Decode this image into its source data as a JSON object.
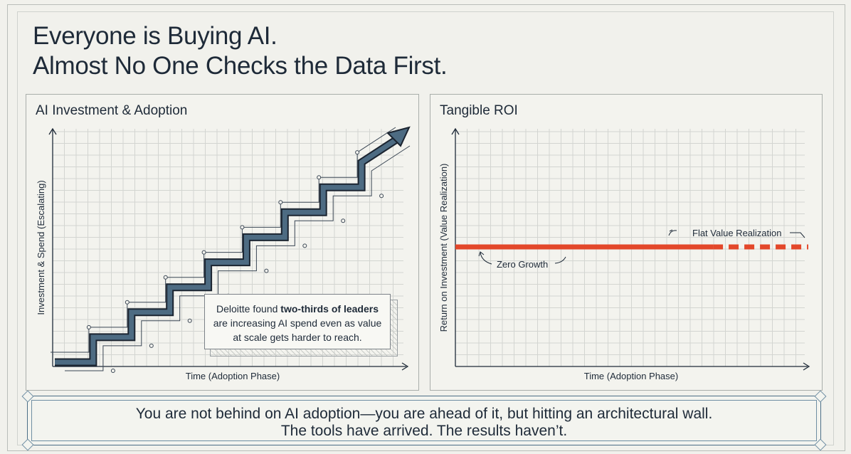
{
  "headline": {
    "line1": "Everyone is Buying AI.",
    "line2": "Almost No One Checks the Data First."
  },
  "left_panel": {
    "title": "AI Investment & Adoption",
    "callout": {
      "prefix": "Deloitte found ",
      "bold": "two-thirds of leaders",
      "line2": "are increasing AI spend even as value",
      "line3": "at scale gets harder to reach."
    }
  },
  "right_panel": {
    "title": "Tangible ROI",
    "annotation_flat": "Flat Value Realization",
    "annotation_zero": "Zero Growth"
  },
  "banner": {
    "line1": "You are not behind on AI adoption—you are ahead of it, but hitting an architectural wall.",
    "line2": "The tools have arrived. The results haven’t."
  },
  "chart_data": [
    {
      "type": "line",
      "title": "AI Investment & Adoption",
      "xlabel": "Time (Adoption Phase)",
      "ylabel": "Investment & Spend (Escalating)",
      "grid": true,
      "series": [
        {
          "x": [
            0,
            1,
            1,
            2,
            2,
            3,
            3,
            4,
            4,
            5,
            5,
            6,
            6,
            7,
            7,
            8,
            8,
            9
          ],
          "values": [
            0,
            0,
            1,
            1,
            2,
            2,
            3,
            3,
            4,
            4,
            5,
            5,
            6,
            6,
            7,
            7,
            8,
            9
          ]
        }
      ]
    },
    {
      "type": "line",
      "title": "Tangible ROI",
      "xlabel": "Time (Adoption Phase)",
      "ylabel": "Return on Investment (Value Realization)",
      "grid": true,
      "series": [
        {
          "x": [
            0,
            10
          ],
          "values": [
            1,
            1
          ]
        }
      ]
    }
  ]
}
